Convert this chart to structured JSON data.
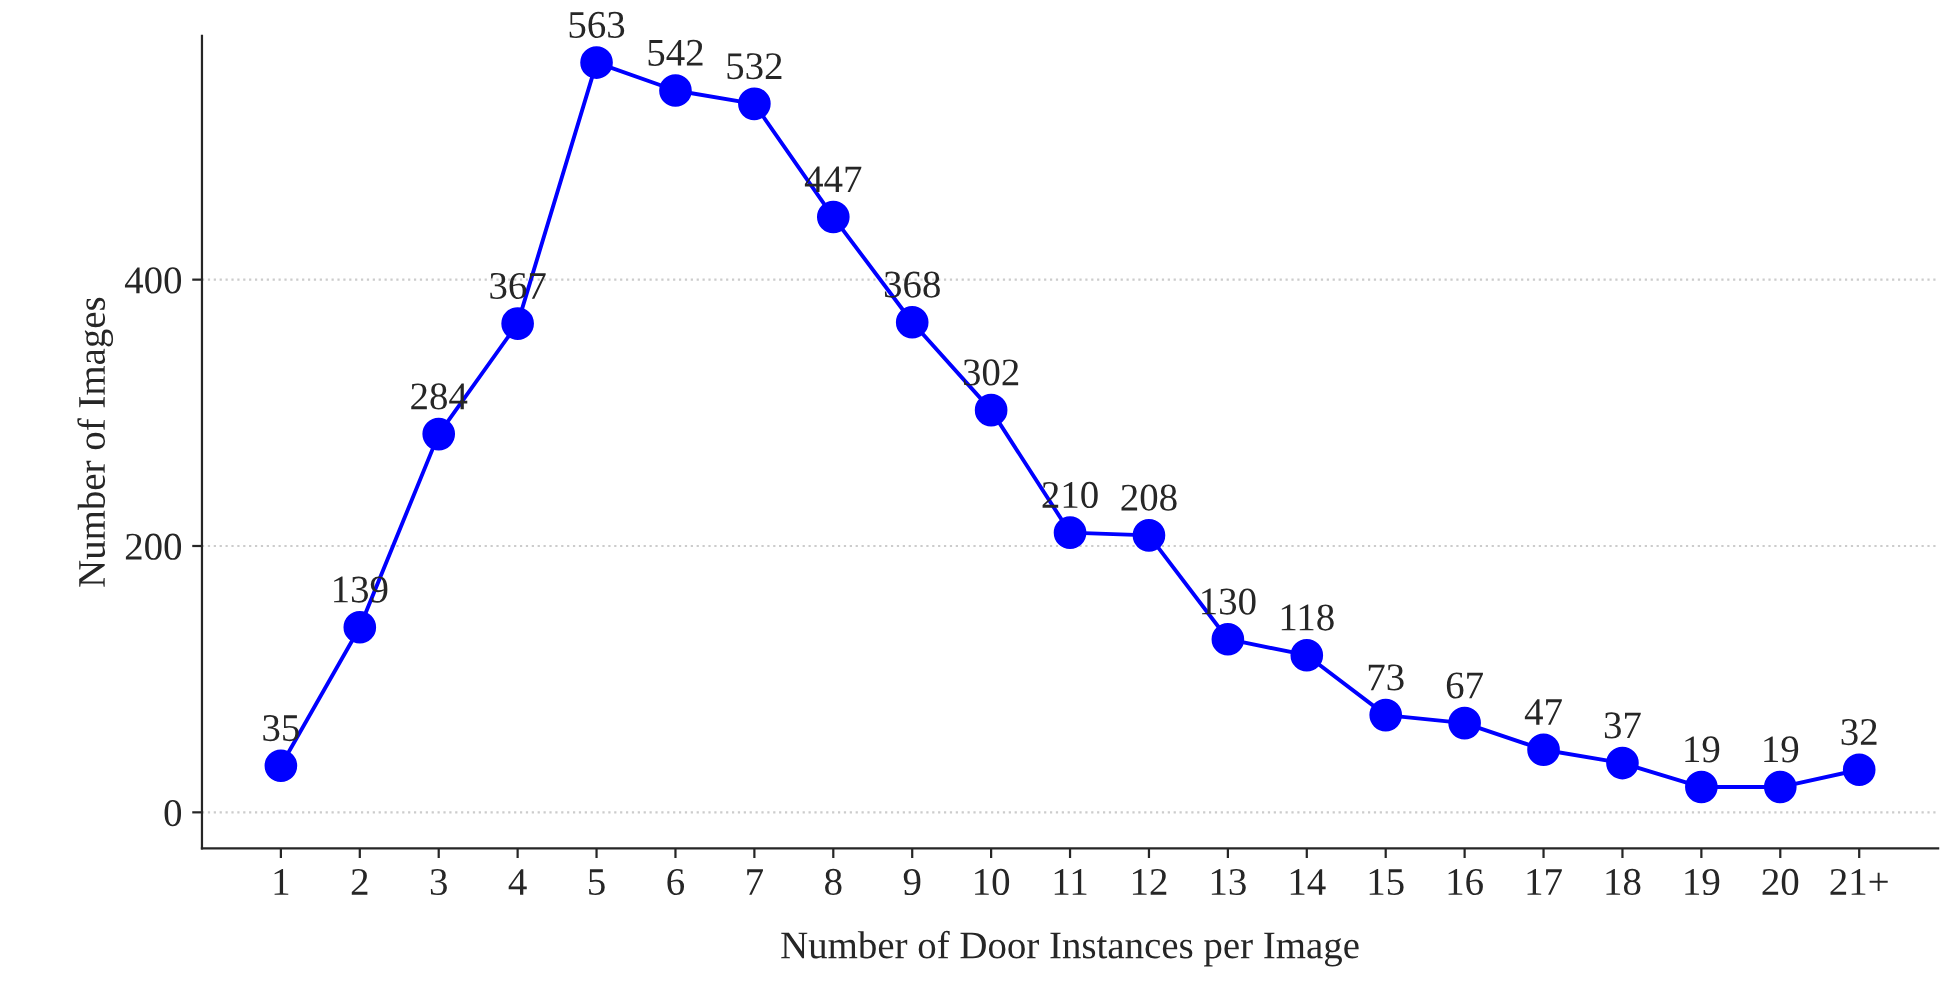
{
  "chart_data": {
    "type": "line",
    "xlabel": "Number of Door Instances per Image",
    "ylabel": "Number of Images",
    "categories": [
      "1",
      "2",
      "3",
      "4",
      "5",
      "6",
      "7",
      "8",
      "9",
      "10",
      "11",
      "12",
      "13",
      "14",
      "15",
      "16",
      "17",
      "18",
      "19",
      "20",
      "21+"
    ],
    "series": [
      {
        "color": "#0000ff",
        "values": [
          35,
          139,
          284,
          367,
          563,
          542,
          532,
          447,
          368,
          302,
          210,
          208,
          130,
          118,
          73,
          67,
          47,
          37,
          19,
          19,
          32
        ]
      }
    ],
    "ylim": [
      -27,
      583
    ],
    "yticks": [
      0,
      200,
      400
    ],
    "grid": "y",
    "marker": "circle",
    "line_style": "solid",
    "data_labels": true,
    "legend": false
  }
}
